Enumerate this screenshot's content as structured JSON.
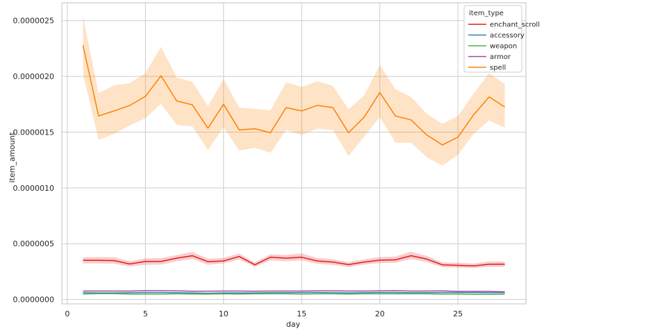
{
  "chart_data": {
    "type": "line",
    "xlabel": "day",
    "ylabel": "item_amount",
    "xlim": [
      -0.35,
      29.35
    ],
    "ylim": [
      -4e-08,
      2.66e-06
    ],
    "xticks": [
      0,
      5,
      10,
      15,
      20,
      25
    ],
    "yticks": [
      0,
      5e-07,
      1e-06,
      1.5e-06,
      2e-06,
      2.5e-06
    ],
    "ytick_labels": [
      "0.0000000",
      "0.0000005",
      "0.0000010",
      "0.0000015",
      "0.0000020",
      "0.0000025"
    ],
    "grid": true,
    "legend": {
      "title": "item_type",
      "position": "top-right"
    },
    "x": [
      1,
      2,
      3,
      4,
      5,
      6,
      7,
      8,
      9,
      10,
      11,
      12,
      13,
      14,
      15,
      16,
      17,
      18,
      19,
      20,
      21,
      22,
      23,
      24,
      25,
      26,
      27,
      28
    ],
    "series": [
      {
        "name": "enchant_scroll",
        "color": "#e41a1c",
        "values": [
          3.5e-07,
          3.5e-07,
          3.48e-07,
          3.18e-07,
          3.4e-07,
          3.4e-07,
          3.7e-07,
          3.92e-07,
          3.38e-07,
          3.45e-07,
          3.85e-07,
          3.1e-07,
          3.78e-07,
          3.7e-07,
          3.78e-07,
          3.45e-07,
          3.35e-07,
          3.12e-07,
          3.35e-07,
          3.52e-07,
          3.55e-07,
          3.92e-07,
          3.62e-07,
          3.1e-07,
          3.05e-07,
          3e-07,
          3.15e-07,
          3.15e-07
        ],
        "ci_low": [
          3.22e-07,
          3.22e-07,
          3.2e-07,
          2.95e-07,
          3.1e-07,
          3.12e-07,
          3.42e-07,
          3.62e-07,
          3.1e-07,
          3.22e-07,
          3.58e-07,
          2.92e-07,
          3.5e-07,
          3.42e-07,
          3.5e-07,
          3.2e-07,
          3.1e-07,
          2.9e-07,
          3.12e-07,
          3.25e-07,
          3.28e-07,
          3.62e-07,
          3.35e-07,
          2.9e-07,
          2.85e-07,
          2.82e-07,
          2.92e-07,
          2.92e-07
        ],
        "ci_high": [
          3.78e-07,
          3.8e-07,
          3.78e-07,
          3.42e-07,
          3.68e-07,
          3.7e-07,
          3.98e-07,
          4.25e-07,
          3.65e-07,
          3.72e-07,
          4.12e-07,
          3.3e-07,
          4.05e-07,
          3.98e-07,
          4.12e-07,
          3.72e-07,
          3.6e-07,
          3.35e-07,
          3.6e-07,
          3.8e-07,
          3.85e-07,
          4.28e-07,
          3.9e-07,
          3.32e-07,
          3.28e-07,
          3.2e-07,
          3.42e-07,
          3.38e-07
        ]
      },
      {
        "name": "accessory",
        "color": "#377eb8",
        "values": [
          6e-08,
          5.8e-08,
          5.8e-08,
          6e-08,
          6.2e-08,
          6.2e-08,
          6e-08,
          5.8e-08,
          5.5e-08,
          5.8e-08,
          5.8e-08,
          5.8e-08,
          6e-08,
          6e-08,
          6.2e-08,
          6.2e-08,
          6e-08,
          5.8e-08,
          6e-08,
          6.2e-08,
          6.2e-08,
          6e-08,
          6e-08,
          6.2e-08,
          6.2e-08,
          6.2e-08,
          6e-08,
          6e-08
        ],
        "ci_low": null,
        "ci_high": null
      },
      {
        "name": "weapon",
        "color": "#4daf4a",
        "values": [
          4.8e-08,
          5.2e-08,
          5.2e-08,
          4.8e-08,
          4.8e-08,
          4.8e-08,
          5e-08,
          4.8e-08,
          4.8e-08,
          5e-08,
          4.8e-08,
          5e-08,
          5e-08,
          5e-08,
          4.8e-08,
          5e-08,
          5e-08,
          4.8e-08,
          5e-08,
          5e-08,
          5e-08,
          5e-08,
          5e-08,
          4.8e-08,
          4.8e-08,
          4.5e-08,
          4.5e-08,
          4.5e-08
        ],
        "ci_low": null,
        "ci_high": null
      },
      {
        "name": "armor",
        "color": "#984ea3",
        "values": [
          7.5e-08,
          7.5e-08,
          7.5e-08,
          7.5e-08,
          7.8e-08,
          7.8e-08,
          7.7e-08,
          7.3e-08,
          7.3e-08,
          7.5e-08,
          7.5e-08,
          7.3e-08,
          7.5e-08,
          7.5e-08,
          7.5e-08,
          7.7e-08,
          7.7e-08,
          7.5e-08,
          7.5e-08,
          7.7e-08,
          7.8e-08,
          7.5e-08,
          7.5e-08,
          7.7e-08,
          7.2e-08,
          7.2e-08,
          7.2e-08,
          6.8e-08
        ],
        "ci_low": null,
        "ci_high": null
      },
      {
        "name": "spell",
        "color": "#ff7f00",
        "values": [
          2.28e-06,
          1.645e-06,
          1.69e-06,
          1.74e-06,
          1.82e-06,
          2.005e-06,
          1.78e-06,
          1.745e-06,
          1.535e-06,
          1.75e-06,
          1.52e-06,
          1.53e-06,
          1.495e-06,
          1.72e-06,
          1.69e-06,
          1.74e-06,
          1.72e-06,
          1.495e-06,
          1.635e-06,
          1.855e-06,
          1.645e-06,
          1.61e-06,
          1.475e-06,
          1.385e-06,
          1.455e-06,
          1.655e-06,
          1.815e-06,
          1.725e-06
        ],
        "ci_low": [
          2.02e-06,
          1.43e-06,
          1.485e-06,
          1.56e-06,
          1.625e-06,
          1.755e-06,
          1.565e-06,
          1.55e-06,
          1.34e-06,
          1.545e-06,
          1.335e-06,
          1.36e-06,
          1.315e-06,
          1.52e-06,
          1.475e-06,
          1.53e-06,
          1.52e-06,
          1.285e-06,
          1.46e-06,
          1.635e-06,
          1.405e-06,
          1.405e-06,
          1.275e-06,
          1.2e-06,
          1.295e-06,
          1.485e-06,
          1.605e-06,
          1.54e-06
        ],
        "ci_high": [
          2.54e-06,
          1.85e-06,
          1.92e-06,
          1.94e-06,
          2.03e-06,
          2.265e-06,
          1.99e-06,
          1.95e-06,
          1.735e-06,
          1.975e-06,
          1.72e-06,
          1.71e-06,
          1.695e-06,
          1.945e-06,
          1.905e-06,
          1.955e-06,
          1.915e-06,
          1.705e-06,
          1.83e-06,
          2.1e-06,
          1.885e-06,
          1.815e-06,
          1.665e-06,
          1.575e-06,
          1.645e-06,
          1.845e-06,
          2.03e-06,
          1.93e-06
        ]
      }
    ]
  }
}
